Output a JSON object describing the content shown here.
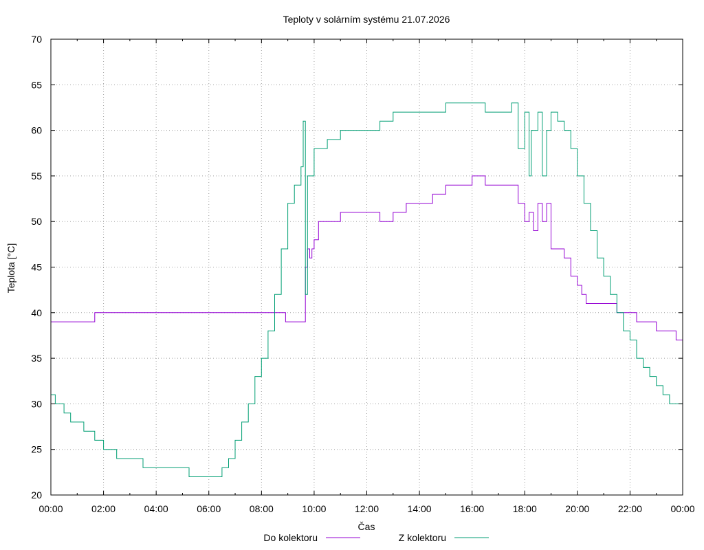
{
  "chart_data": {
    "type": "line",
    "title": "Teploty v solárním systému 21.07.2026",
    "xlabel": "Čas",
    "ylabel": "Teplota [°C]",
    "xlim": [
      "00:00",
      "24:00"
    ],
    "ylim": [
      20,
      70
    ],
    "x_ticks": [
      "00:00",
      "02:00",
      "04:00",
      "06:00",
      "08:00",
      "10:00",
      "12:00",
      "14:00",
      "16:00",
      "18:00",
      "20:00",
      "22:00",
      "00:00"
    ],
    "y_ticks": [
      "20",
      "25",
      "30",
      "35",
      "40",
      "45",
      "50",
      "55",
      "60",
      "65",
      "70"
    ],
    "grid": true,
    "legend_position": "bottom",
    "series": [
      {
        "name": "Do kolektoru",
        "color": "#9400d3",
        "x": [
          "00:00",
          "01:30",
          "01:40",
          "08:50",
          "08:55",
          "09:35",
          "09:40",
          "09:45",
          "09:50",
          "09:55",
          "10:00",
          "10:10",
          "10:30",
          "11:00",
          "11:30",
          "12:00",
          "12:30",
          "13:00",
          "13:30",
          "14:00",
          "14:30",
          "15:00",
          "15:30",
          "16:00",
          "16:30",
          "17:00",
          "17:30",
          "17:45",
          "18:00",
          "18:10",
          "18:20",
          "18:30",
          "18:40",
          "18:50",
          "19:00",
          "19:15",
          "19:30",
          "19:45",
          "20:00",
          "20:10",
          "20:20",
          "20:30",
          "21:00",
          "21:30",
          "22:00",
          "22:15",
          "22:40",
          "23:00",
          "23:40",
          "23:45",
          "24:00"
        ],
        "y": [
          39,
          39,
          40,
          40,
          39,
          39,
          45,
          47,
          46,
          47,
          48,
          50,
          50,
          51,
          51,
          51,
          50,
          51,
          52,
          52,
          53,
          54,
          54,
          55,
          54,
          54,
          54,
          52,
          50,
          51,
          49,
          52,
          50,
          52,
          47,
          47,
          46,
          44,
          43,
          42,
          41,
          41,
          41,
          40,
          40,
          39,
          39,
          38,
          38,
          37,
          38
        ]
      },
      {
        "name": "Z kolektoru",
        "color": "#009e73",
        "x": [
          "00:00",
          "00:05",
          "00:10",
          "00:30",
          "00:45",
          "01:15",
          "01:40",
          "02:00",
          "02:30",
          "03:00",
          "03:30",
          "04:00",
          "04:30",
          "05:00",
          "05:15",
          "05:30",
          "06:00",
          "06:15",
          "06:30",
          "06:45",
          "07:00",
          "07:15",
          "07:30",
          "07:45",
          "08:00",
          "08:15",
          "08:30",
          "08:45",
          "09:00",
          "09:15",
          "09:30",
          "09:35",
          "09:40",
          "09:45",
          "10:00",
          "10:30",
          "11:00",
          "11:30",
          "12:00",
          "12:30",
          "13:00",
          "13:30",
          "14:00",
          "14:30",
          "15:00",
          "15:30",
          "16:00",
          "16:30",
          "17:00",
          "17:30",
          "17:45",
          "18:00",
          "18:10",
          "18:15",
          "18:30",
          "18:40",
          "18:50",
          "19:00",
          "19:15",
          "19:30",
          "19:45",
          "20:00",
          "20:15",
          "20:30",
          "20:45",
          "21:00",
          "21:15",
          "21:30",
          "21:45",
          "22:00",
          "22:15",
          "22:30",
          "22:45",
          "23:00",
          "23:15",
          "23:30",
          "23:45",
          "24:00"
        ],
        "y": [
          31,
          31,
          30,
          29,
          28,
          27,
          26,
          25,
          24,
          24,
          23,
          23,
          23,
          23,
          22,
          22,
          22,
          22,
          23,
          24,
          26,
          28,
          30,
          33,
          35,
          38,
          42,
          47,
          52,
          54,
          56,
          61,
          42,
          55,
          58,
          59,
          60,
          60,
          60,
          61,
          62,
          62,
          62,
          62,
          63,
          63,
          63,
          62,
          62,
          63,
          58,
          62,
          55,
          60,
          62,
          55,
          60,
          62,
          61,
          60,
          58,
          55,
          52,
          49,
          46,
          44,
          42,
          40,
          38,
          37,
          35,
          34,
          33,
          32,
          31,
          30,
          30,
          30
        ]
      }
    ]
  }
}
